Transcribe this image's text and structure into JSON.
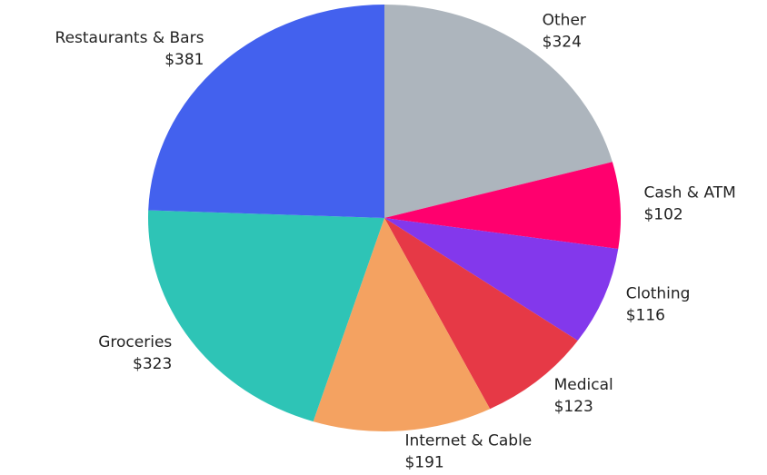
{
  "chart_data": {
    "type": "pie",
    "categories": [
      "Other",
      "Cash & ATM",
      "Clothing",
      "Medical",
      "Internet & Cable",
      "Groceries",
      "Restaurants & Bars"
    ],
    "values": [
      324,
      102,
      116,
      123,
      191,
      323,
      381
    ],
    "value_labels": [
      "$324",
      "$102",
      "$116",
      "$123",
      "$191",
      "$323",
      "$381"
    ],
    "colors": [
      "#adb5bd",
      "#ff006e",
      "#8338ec",
      "#e63946",
      "#f4a261",
      "#2ec4b6",
      "#4361ee"
    ]
  }
}
